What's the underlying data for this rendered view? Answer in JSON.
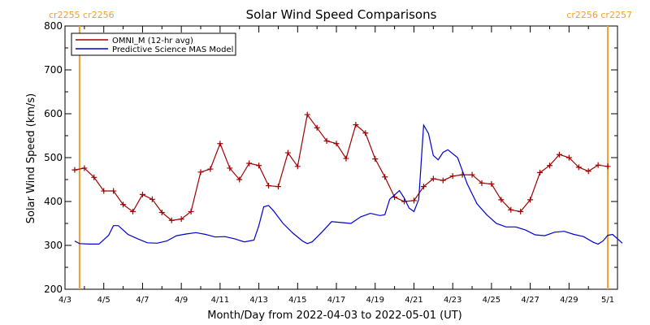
{
  "chart_data": {
    "type": "line",
    "title": "Solar Wind Speed Comparisons",
    "xlabel": "Month/Day from 2022-04-03 to 2022-05-01 (UT)",
    "ylabel": "Solar Wind Speed (km/s)",
    "xlim": [
      "2022-04-03",
      "2022-05-01T12:00"
    ],
    "ylim": [
      200,
      800
    ],
    "y_ticks": [
      200,
      300,
      400,
      500,
      600,
      700,
      800
    ],
    "x_ticks": [
      {
        "date": "2022-04-03",
        "label": "4/3"
      },
      {
        "date": "2022-04-05",
        "label": "4/5"
      },
      {
        "date": "2022-04-07",
        "label": "4/7"
      },
      {
        "date": "2022-04-09",
        "label": "4/9"
      },
      {
        "date": "2022-04-11",
        "label": "4/11"
      },
      {
        "date": "2022-04-13",
        "label": "4/13"
      },
      {
        "date": "2022-04-15",
        "label": "4/15"
      },
      {
        "date": "2022-04-17",
        "label": "4/17"
      },
      {
        "date": "2022-04-19",
        "label": "4/19"
      },
      {
        "date": "2022-04-21",
        "label": "4/21"
      },
      {
        "date": "2022-04-23",
        "label": "4/23"
      },
      {
        "date": "2022-04-25",
        "label": "4/25"
      },
      {
        "date": "2022-04-27",
        "label": "4/27"
      },
      {
        "date": "2022-04-29",
        "label": "4/29"
      },
      {
        "date": "2022-05-01",
        "label": "5/1"
      }
    ],
    "grid": false,
    "legend_position": "top-left",
    "carrington_markers": [
      {
        "date": "2022-04-03T18:00",
        "label": "cr2255 cr2256",
        "align": "left",
        "color": "#f0a030"
      },
      {
        "date": "2022-05-01T00:00",
        "label": "cr2256 cr2257",
        "align": "right",
        "color": "#f0a030"
      }
    ],
    "series": [
      {
        "name": "OMNI_M (12-hr avg)",
        "color": "#a00000",
        "markers": "plus",
        "points": [
          [
            "2022-04-03T12:00",
            472
          ],
          [
            "2022-04-04T00:00",
            476
          ],
          [
            "2022-04-04T12:00",
            455
          ],
          [
            "2022-04-05T00:00",
            424
          ],
          [
            "2022-04-05T12:00",
            424
          ],
          [
            "2022-04-06T00:00",
            393
          ],
          [
            "2022-04-06T12:00",
            377
          ],
          [
            "2022-04-07T00:00",
            416
          ],
          [
            "2022-04-07T12:00",
            405
          ],
          [
            "2022-04-08T00:00",
            375
          ],
          [
            "2022-04-08T12:00",
            357
          ],
          [
            "2022-04-09T00:00",
            360
          ],
          [
            "2022-04-09T12:00",
            377
          ],
          [
            "2022-04-10T00:00",
            467
          ],
          [
            "2022-04-10T12:00",
            474
          ],
          [
            "2022-04-11T00:00",
            532
          ],
          [
            "2022-04-11T12:00",
            476
          ],
          [
            "2022-04-12T00:00",
            450
          ],
          [
            "2022-04-12T12:00",
            487
          ],
          [
            "2022-04-13T00:00",
            482
          ],
          [
            "2022-04-13T12:00",
            436
          ],
          [
            "2022-04-14T00:00",
            434
          ],
          [
            "2022-04-14T12:00",
            511
          ],
          [
            "2022-04-15T00:00",
            480
          ],
          [
            "2022-04-15T12:00",
            598
          ],
          [
            "2022-04-16T00:00",
            568
          ],
          [
            "2022-04-16T12:00",
            538
          ],
          [
            "2022-04-17T00:00",
            532
          ],
          [
            "2022-04-17T12:00",
            498
          ],
          [
            "2022-04-18T00:00",
            575
          ],
          [
            "2022-04-18T12:00",
            556
          ],
          [
            "2022-04-19T00:00",
            497
          ],
          [
            "2022-04-19T12:00",
            456
          ],
          [
            "2022-04-20T00:00",
            410
          ],
          [
            "2022-04-20T12:00",
            400
          ],
          [
            "2022-04-21T00:00",
            402
          ],
          [
            "2022-04-21T12:00",
            434
          ],
          [
            "2022-04-22T00:00",
            452
          ],
          [
            "2022-04-22T12:00",
            448
          ],
          [
            "2022-04-23T00:00",
            458
          ],
          [
            "2022-04-23T12:00",
            461
          ],
          [
            "2022-04-24T00:00",
            461
          ],
          [
            "2022-04-24T12:00",
            442
          ],
          [
            "2022-04-25T00:00",
            440
          ],
          [
            "2022-04-25T12:00",
            404
          ],
          [
            "2022-04-26T00:00",
            381
          ],
          [
            "2022-04-26T12:00",
            377
          ],
          [
            "2022-04-27T00:00",
            404
          ],
          [
            "2022-04-27T12:00",
            466
          ],
          [
            "2022-04-28T00:00",
            482
          ],
          [
            "2022-04-28T12:00",
            507
          ],
          [
            "2022-04-29T00:00",
            500
          ],
          [
            "2022-04-29T12:00",
            478
          ],
          [
            "2022-04-30T00:00",
            469
          ],
          [
            "2022-04-30T12:00",
            483
          ],
          [
            "2022-05-01T00:00",
            480
          ]
        ]
      },
      {
        "name": "Predictive Science MAS Model",
        "color": "#0000d0",
        "markers": "none",
        "points": [
          [
            "2022-04-03T12:00",
            310
          ],
          [
            "2022-04-03T18:00",
            304
          ],
          [
            "2022-04-04T06:00",
            303
          ],
          [
            "2022-04-04T18:00",
            303
          ],
          [
            "2022-04-05T06:00",
            323
          ],
          [
            "2022-04-05T12:00",
            345
          ],
          [
            "2022-04-05T18:00",
            345
          ],
          [
            "2022-04-06T06:00",
            325
          ],
          [
            "2022-04-06T18:00",
            315
          ],
          [
            "2022-04-07T06:00",
            306
          ],
          [
            "2022-04-07T18:00",
            305
          ],
          [
            "2022-04-08T06:00",
            310
          ],
          [
            "2022-04-08T18:00",
            322
          ],
          [
            "2022-04-09T06:00",
            326
          ],
          [
            "2022-04-09T18:00",
            329
          ],
          [
            "2022-04-10T06:00",
            325
          ],
          [
            "2022-04-10T18:00",
            319
          ],
          [
            "2022-04-11T06:00",
            320
          ],
          [
            "2022-04-11T18:00",
            315
          ],
          [
            "2022-04-12T06:00",
            308
          ],
          [
            "2022-04-12T18:00",
            312
          ],
          [
            "2022-04-13T00:00",
            345
          ],
          [
            "2022-04-13T06:00",
            388
          ],
          [
            "2022-04-13T12:00",
            391
          ],
          [
            "2022-04-13T18:00",
            379
          ],
          [
            "2022-04-14T06:00",
            350
          ],
          [
            "2022-04-14T18:00",
            328
          ],
          [
            "2022-04-15T06:00",
            310
          ],
          [
            "2022-04-15T12:00",
            304
          ],
          [
            "2022-04-15T18:00",
            308
          ],
          [
            "2022-04-16T06:00",
            330
          ],
          [
            "2022-04-16T18:00",
            354
          ],
          [
            "2022-04-17T06:00",
            352
          ],
          [
            "2022-04-17T18:00",
            350
          ],
          [
            "2022-04-18T06:00",
            365
          ],
          [
            "2022-04-18T18:00",
            373
          ],
          [
            "2022-04-19T06:00",
            368
          ],
          [
            "2022-04-19T12:00",
            370
          ],
          [
            "2022-04-19T18:00",
            405
          ],
          [
            "2022-04-20T06:00",
            425
          ],
          [
            "2022-04-20T12:00",
            408
          ],
          [
            "2022-04-20T18:00",
            385
          ],
          [
            "2022-04-21T00:00",
            377
          ],
          [
            "2022-04-21T06:00",
            405
          ],
          [
            "2022-04-21T12:00",
            574
          ],
          [
            "2022-04-21T18:00",
            555
          ],
          [
            "2022-04-22T00:00",
            505
          ],
          [
            "2022-04-22T06:00",
            495
          ],
          [
            "2022-04-22T12:00",
            512
          ],
          [
            "2022-04-22T18:00",
            518
          ],
          [
            "2022-04-23T06:00",
            500
          ],
          [
            "2022-04-23T18:00",
            440
          ],
          [
            "2022-04-24T06:00",
            395
          ],
          [
            "2022-04-24T18:00",
            370
          ],
          [
            "2022-04-25T06:00",
            350
          ],
          [
            "2022-04-25T18:00",
            342
          ],
          [
            "2022-04-26T06:00",
            342
          ],
          [
            "2022-04-26T18:00",
            335
          ],
          [
            "2022-04-27T06:00",
            324
          ],
          [
            "2022-04-27T18:00",
            322
          ],
          [
            "2022-04-28T06:00",
            330
          ],
          [
            "2022-04-28T18:00",
            332
          ],
          [
            "2022-04-29T06:00",
            325
          ],
          [
            "2022-04-29T18:00",
            320
          ],
          [
            "2022-04-30T06:00",
            307
          ],
          [
            "2022-04-30T12:00",
            303
          ],
          [
            "2022-04-30T18:00",
            310
          ],
          [
            "2022-05-01T00:00",
            323
          ],
          [
            "2022-05-01T06:00",
            325
          ],
          [
            "2022-05-01T12:00",
            315
          ],
          [
            "2022-05-01T18:00",
            305
          ]
        ]
      }
    ]
  }
}
